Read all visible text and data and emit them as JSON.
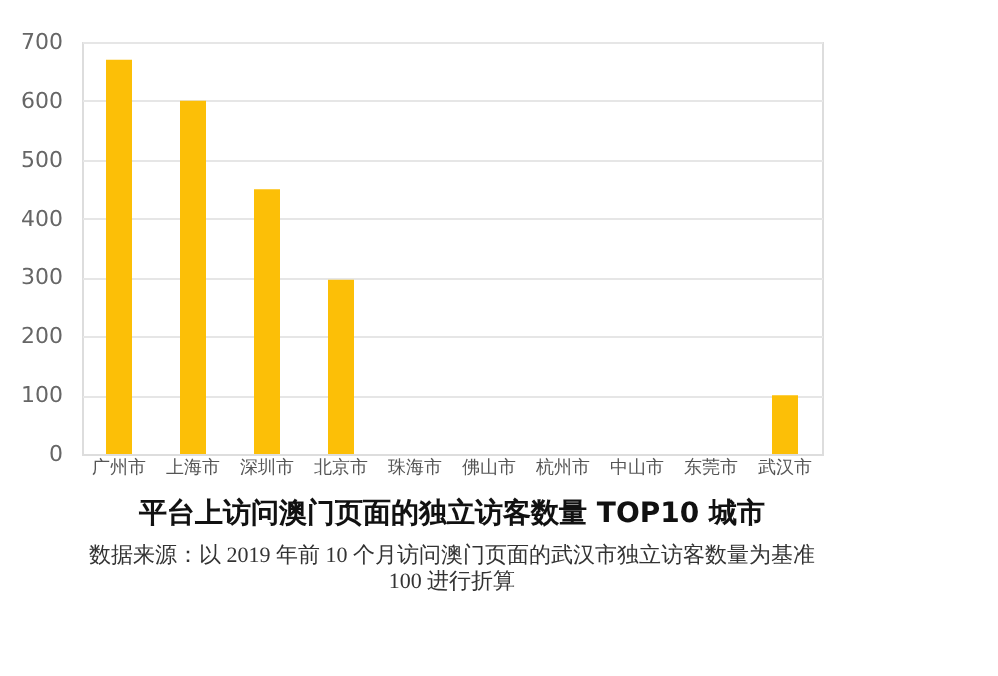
{
  "chart_data": {
    "type": "bar",
    "title": "平台上访问澳门页面的独立访客数量 TOP10 城市",
    "annotations": [
      "数据来源：以 2019 年前 10 个月访问澳门页面的武汉市独立访客数量为基准 100 进行折算"
    ],
    "categories": [
      "广州市",
      "上海市",
      "深圳市",
      "北京市",
      "珠海市",
      "佛山市",
      "杭州市",
      "中山市",
      "东莞市",
      "武汉市"
    ],
    "values": [
      670,
      600,
      450,
      296,
      null,
      null,
      null,
      null,
      null,
      100
    ],
    "color": "#fcbf07",
    "ylim": [
      0,
      700
    ],
    "yticks": [
      0,
      100,
      200,
      300,
      400,
      500,
      600,
      700
    ],
    "grid": "y"
  }
}
